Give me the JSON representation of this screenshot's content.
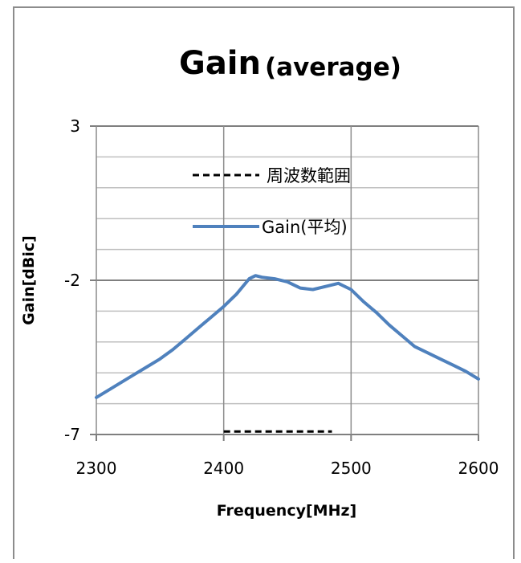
{
  "chart_data": {
    "type": "line",
    "title": "Gain",
    "subtitle": "(average)",
    "xlabel": "Frequency[MHz]",
    "ylabel": "Gain[dBic]",
    "xlim": [
      2300,
      2600
    ],
    "ylim": [
      -7,
      3
    ],
    "x_ticks": [
      2300,
      2400,
      2500,
      2600
    ],
    "y_ticks": [
      3,
      -2,
      -7
    ],
    "grid": true,
    "legend_position": "top-center",
    "series": [
      {
        "name": "周波数範囲",
        "style": "dashed",
        "color": "#000000",
        "x": [
          2400,
          2485
        ],
        "y": [
          -6.9,
          -6.9
        ]
      },
      {
        "name": "Gain(平均)",
        "style": "solid",
        "color": "#4f81bd",
        "x": [
          2300,
          2310,
          2320,
          2330,
          2340,
          2350,
          2360,
          2370,
          2380,
          2390,
          2400,
          2410,
          2420,
          2425,
          2430,
          2440,
          2450,
          2460,
          2470,
          2480,
          2490,
          2500,
          2510,
          2520,
          2530,
          2540,
          2550,
          2560,
          2570,
          2580,
          2590,
          2600
        ],
        "y": [
          -5.8,
          -5.55,
          -5.3,
          -5.05,
          -4.8,
          -4.55,
          -4.25,
          -3.9,
          -3.55,
          -3.2,
          -2.85,
          -2.45,
          -1.95,
          -1.85,
          -1.9,
          -1.95,
          -2.05,
          -2.25,
          -2.3,
          -2.2,
          -2.1,
          -2.3,
          -2.7,
          -3.05,
          -3.45,
          -3.8,
          -4.15,
          -4.35,
          -4.55,
          -4.75,
          -4.95,
          -5.2
        ]
      }
    ]
  }
}
